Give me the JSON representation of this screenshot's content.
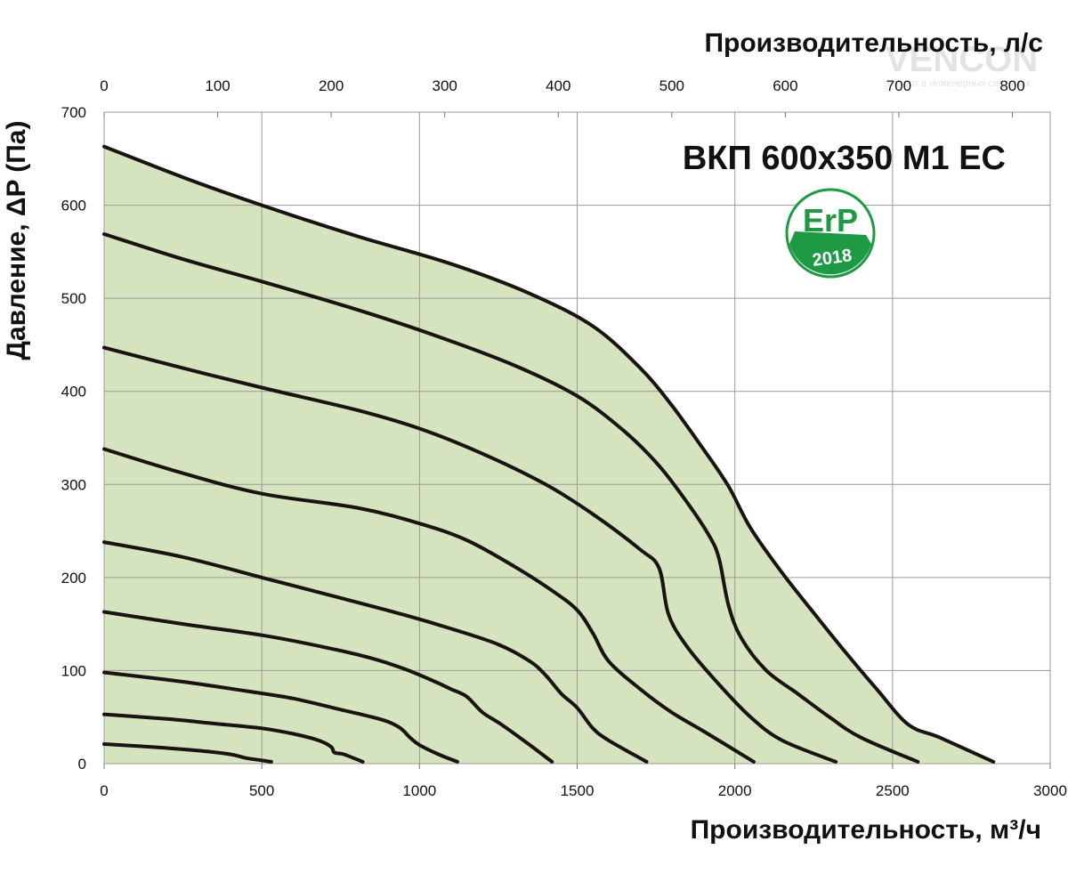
{
  "chart_data": {
    "type": "line",
    "title": "ВКП 600x350 M1 EC",
    "xlabel": "Производительность, м³/ч",
    "x2label": "Производительность, л/с",
    "ylabel": "Давление, ΔP (Па)",
    "xlim": [
      0,
      3000
    ],
    "ylim": [
      0,
      700
    ],
    "x2lim": [
      0,
      833.3
    ],
    "x_ticks": [
      0,
      500,
      1000,
      1500,
      2000,
      2500,
      3000
    ],
    "x2_ticks": [
      0,
      100,
      200,
      300,
      400,
      500,
      600,
      700,
      800
    ],
    "y_ticks": [
      0,
      100,
      200,
      300,
      400,
      500,
      600,
      700
    ],
    "grid": true,
    "legend": "none",
    "series": [
      {
        "points": [
          [
            0,
            663
          ],
          [
            250,
            630
          ],
          [
            500,
            600
          ],
          [
            800,
            567
          ],
          [
            1100,
            537
          ],
          [
            1350,
            505
          ],
          [
            1550,
            470
          ],
          [
            1700,
            425
          ],
          [
            1800,
            385
          ],
          [
            1900,
            338
          ],
          [
            1980,
            298
          ],
          [
            2050,
            253
          ],
          [
            2150,
            205
          ],
          [
            2250,
            162
          ],
          [
            2350,
            120
          ],
          [
            2450,
            80
          ],
          [
            2550,
            42
          ],
          [
            2650,
            28
          ],
          [
            2820,
            2
          ]
        ]
      },
      {
        "points": [
          [
            0,
            569
          ],
          [
            250,
            542
          ],
          [
            500,
            518
          ],
          [
            800,
            488
          ],
          [
            1050,
            460
          ],
          [
            1300,
            428
          ],
          [
            1500,
            395
          ],
          [
            1650,
            357
          ],
          [
            1760,
            320
          ],
          [
            1850,
            280
          ],
          [
            1920,
            244
          ],
          [
            1950,
            220
          ],
          [
            1980,
            170
          ],
          [
            2020,
            135
          ],
          [
            2100,
            100
          ],
          [
            2200,
            75
          ],
          [
            2300,
            50
          ],
          [
            2400,
            28
          ],
          [
            2580,
            2
          ]
        ]
      },
      {
        "points": [
          [
            0,
            447
          ],
          [
            250,
            425
          ],
          [
            500,
            404
          ],
          [
            800,
            380
          ],
          [
            1000,
            360
          ],
          [
            1200,
            333
          ],
          [
            1400,
            300
          ],
          [
            1550,
            268
          ],
          [
            1700,
            230
          ],
          [
            1760,
            210
          ],
          [
            1790,
            160
          ],
          [
            1850,
            125
          ],
          [
            1950,
            85
          ],
          [
            2050,
            50
          ],
          [
            2150,
            25
          ],
          [
            2320,
            2
          ]
        ]
      },
      {
        "points": [
          [
            0,
            338
          ],
          [
            250,
            312
          ],
          [
            500,
            290
          ],
          [
            800,
            275
          ],
          [
            1000,
            258
          ],
          [
            1150,
            240
          ],
          [
            1300,
            212
          ],
          [
            1420,
            186
          ],
          [
            1500,
            165
          ],
          [
            1550,
            140
          ],
          [
            1600,
            110
          ],
          [
            1700,
            80
          ],
          [
            1800,
            55
          ],
          [
            1900,
            35
          ],
          [
            2060,
            2
          ]
        ]
      },
      {
        "points": [
          [
            0,
            238
          ],
          [
            250,
            222
          ],
          [
            500,
            200
          ],
          [
            750,
            178
          ],
          [
            950,
            160
          ],
          [
            1100,
            145
          ],
          [
            1250,
            128
          ],
          [
            1350,
            110
          ],
          [
            1400,
            95
          ],
          [
            1450,
            75
          ],
          [
            1500,
            60
          ],
          [
            1550,
            38
          ],
          [
            1600,
            25
          ],
          [
            1720,
            2
          ]
        ]
      },
      {
        "points": [
          [
            0,
            163
          ],
          [
            250,
            150
          ],
          [
            500,
            138
          ],
          [
            700,
            125
          ],
          [
            850,
            113
          ],
          [
            950,
            102
          ],
          [
            1050,
            88
          ],
          [
            1100,
            80
          ],
          [
            1150,
            72
          ],
          [
            1200,
            55
          ],
          [
            1260,
            42
          ],
          [
            1350,
            20
          ],
          [
            1420,
            2
          ]
        ]
      },
      {
        "points": [
          [
            0,
            98
          ],
          [
            250,
            88
          ],
          [
            450,
            78
          ],
          [
            600,
            70
          ],
          [
            750,
            58
          ],
          [
            850,
            50
          ],
          [
            900,
            45
          ],
          [
            940,
            38
          ],
          [
            970,
            28
          ],
          [
            1000,
            20
          ],
          [
            1060,
            10
          ],
          [
            1120,
            2
          ]
        ]
      },
      {
        "points": [
          [
            0,
            53
          ],
          [
            200,
            48
          ],
          [
            350,
            43
          ],
          [
            500,
            38
          ],
          [
            600,
            32
          ],
          [
            680,
            25
          ],
          [
            720,
            18
          ],
          [
            730,
            12
          ],
          [
            760,
            10
          ],
          [
            820,
            2
          ]
        ]
      },
      {
        "points": [
          [
            0,
            21
          ],
          [
            150,
            18
          ],
          [
            300,
            14
          ],
          [
            400,
            10
          ],
          [
            450,
            6
          ],
          [
            490,
            4
          ],
          [
            530,
            2
          ]
        ]
      }
    ]
  },
  "logo": {
    "text": "VENCON",
    "tagline": "эксперт в инженерных системах"
  },
  "badge": {
    "top": "ErP",
    "bottom": "2018",
    "color": "#1f9a44"
  }
}
